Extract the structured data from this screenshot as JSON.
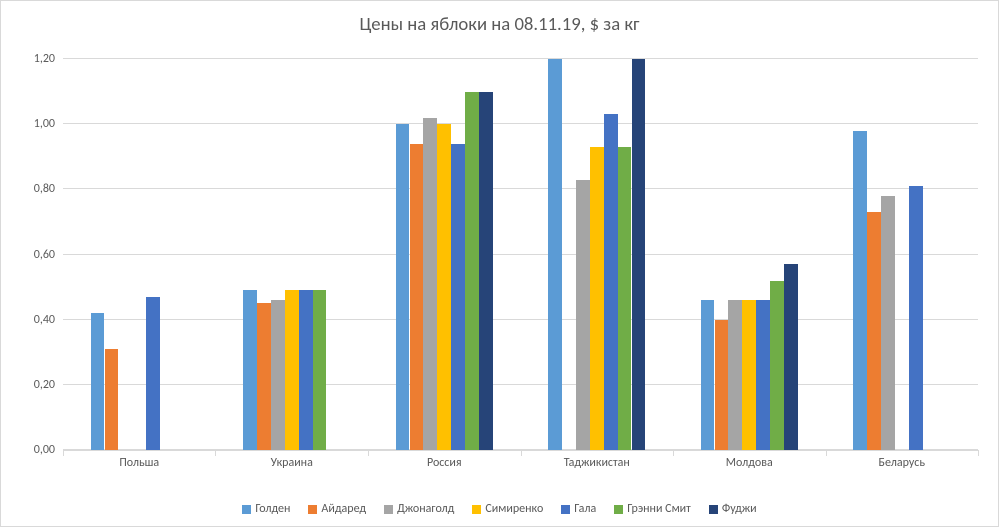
{
  "chart": {
    "type": "bar",
    "title": "Цены на яблоки на 08.11.19, $ за кг",
    "title_fontsize": 18.7,
    "title_color": "#595959",
    "background_color": "#ffffff",
    "border_color": "#d9d9d9",
    "grid_color": "#d9d9d9",
    "axis_label_fontsize": 12,
    "axis_label_color": "#595959",
    "legend_fontsize": 12,
    "ylim": [
      0,
      1.2
    ],
    "ytick_step": 0.2,
    "ytick_format": "0,00",
    "yticks": [
      "0,00",
      "0,20",
      "0,40",
      "0,60",
      "0,80",
      "1,00",
      "1,20"
    ],
    "categories": [
      "Польша",
      "Украина",
      "Россия",
      "Таджикистан",
      "Молдова",
      "Беларусь"
    ],
    "series": [
      {
        "name": "Голден",
        "color": "#5b9bd5",
        "values": [
          0.42,
          0.49,
          1.0,
          1.2,
          0.46,
          0.98
        ]
      },
      {
        "name": "Айдаред",
        "color": "#ed7d31",
        "values": [
          0.31,
          0.45,
          0.94,
          null,
          0.4,
          0.73
        ]
      },
      {
        "name": "Джонаголд",
        "color": "#a5a5a5",
        "values": [
          null,
          0.46,
          1.02,
          0.83,
          0.46,
          0.78
        ]
      },
      {
        "name": "Симиренко",
        "color": "#ffc000",
        "values": [
          null,
          0.49,
          1.0,
          0.93,
          0.46,
          null
        ]
      },
      {
        "name": "Гала",
        "color": "#4472c4",
        "values": [
          0.47,
          0.49,
          0.94,
          1.03,
          0.46,
          0.81
        ]
      },
      {
        "name": "Грэнни Смит",
        "color": "#70ad47",
        "values": [
          null,
          0.49,
          1.1,
          0.93,
          0.52,
          null
        ]
      },
      {
        "name": "Фуджи",
        "color": "#264478",
        "values": [
          null,
          null,
          1.1,
          1.2,
          0.57,
          null
        ]
      }
    ],
    "bar_gap_ratio": 0.02,
    "group_gap_ratio": 0.18
  }
}
